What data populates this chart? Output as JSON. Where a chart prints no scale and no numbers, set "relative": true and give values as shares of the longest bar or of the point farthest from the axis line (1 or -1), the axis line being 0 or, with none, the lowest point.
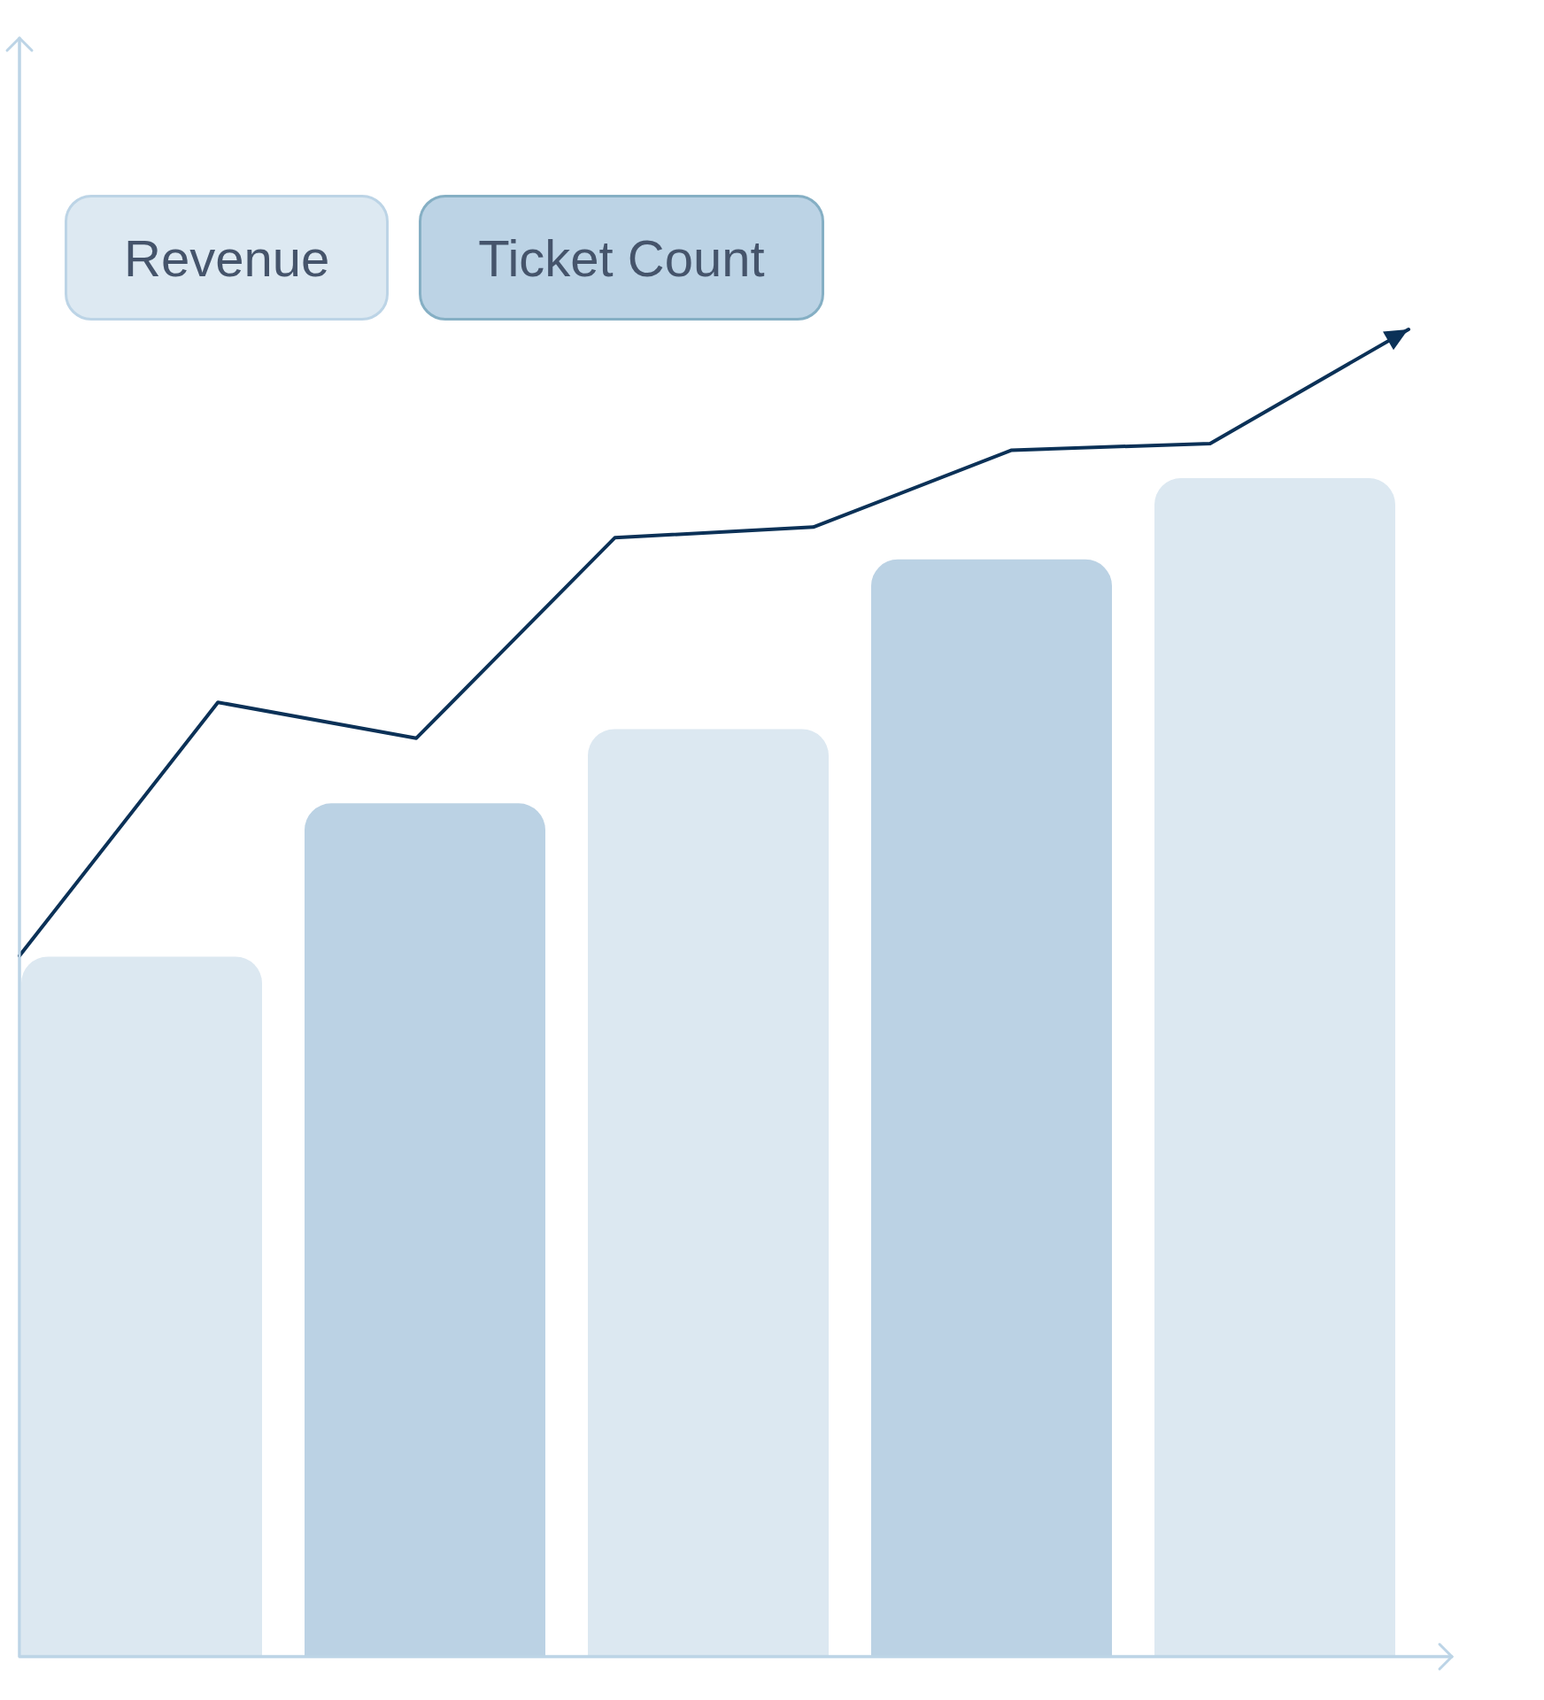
{
  "chart_data": [
    {
      "type": "bar",
      "relative": true,
      "categories": [
        null,
        null,
        null,
        null,
        null
      ],
      "colors": [
        "#dce8f1",
        "#bbd2e4",
        "#dce8f1",
        "#bbd2e4",
        "#dce8f1"
      ],
      "values": [
        0.594,
        0.724,
        0.787,
        0.931,
        1.0
      ],
      "annotations": [
        "Revenue",
        "Ticket Count"
      ]
    },
    {
      "type": "line",
      "relative": true,
      "marker": "none",
      "color": "#0b3157",
      "categories": [
        null,
        null,
        null,
        null,
        null,
        null,
        null,
        null
      ],
      "values": [
        0.528,
        0.719,
        0.692,
        0.843,
        0.851,
        0.909,
        0.914,
        1.0
      ]
    }
  ]
}
